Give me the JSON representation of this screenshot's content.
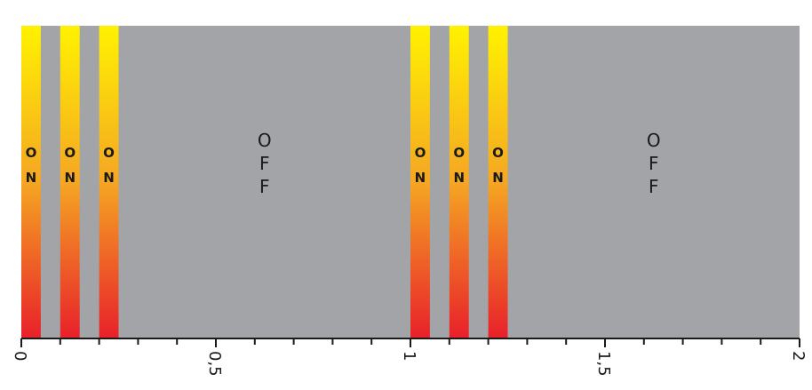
{
  "chart_data": {
    "type": "bar",
    "title": "",
    "xlabel": "",
    "ylabel": "",
    "xlim": [
      0,
      2
    ],
    "x_ticks": [
      {
        "value": 0,
        "label": "0"
      },
      {
        "value": 0.5,
        "label": "0,5"
      },
      {
        "value": 1,
        "label": "1"
      },
      {
        "value": 1.5,
        "label": "1,5"
      },
      {
        "value": 2,
        "label": "2"
      }
    ],
    "minor_tick_step": 0.1,
    "grid": false,
    "colors": {
      "background": "#a3a4a8",
      "on_top": "#fff200",
      "on_middle": "#f5a623",
      "on_bottom": "#e8202a",
      "frame": "#1a1a1a"
    },
    "on_intervals": [
      {
        "start": 0.0,
        "end": 0.05,
        "label": "ON"
      },
      {
        "start": 0.1,
        "end": 0.15,
        "label": "ON"
      },
      {
        "start": 0.2,
        "end": 0.25,
        "label": "ON"
      },
      {
        "start": 1.0,
        "end": 1.05,
        "label": "ON"
      },
      {
        "start": 1.1,
        "end": 1.15,
        "label": "ON"
      },
      {
        "start": 1.2,
        "end": 1.25,
        "label": "ON"
      }
    ],
    "off_labels": [
      {
        "x": 0.625,
        "label": "OFF"
      },
      {
        "x": 1.625,
        "label": "OFF"
      }
    ]
  }
}
